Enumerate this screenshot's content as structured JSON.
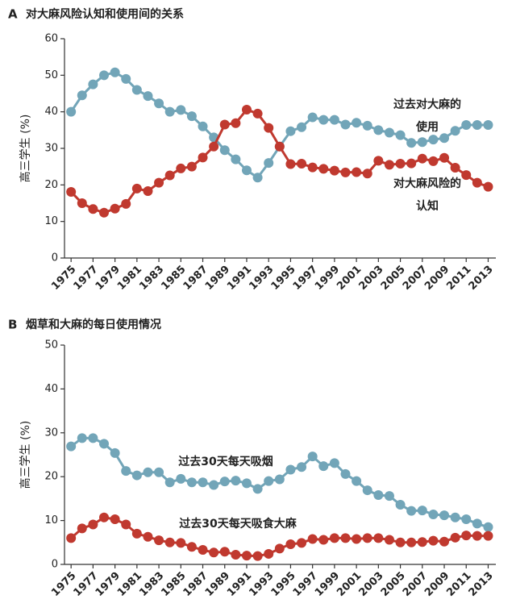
{
  "chart_data": [
    {
      "type": "line",
      "panel": "A",
      "title": "对大麻风险认知和使用间的关系",
      "ylabel": "高三学生 (%)",
      "x": [
        1975,
        1976,
        1977,
        1978,
        1979,
        1980,
        1981,
        1982,
        1983,
        1984,
        1985,
        1986,
        1987,
        1988,
        1989,
        1990,
        1991,
        1992,
        1993,
        1994,
        1995,
        1996,
        1997,
        1998,
        1999,
        2000,
        2001,
        2002,
        2003,
        2004,
        2005,
        2006,
        2007,
        2008,
        2009,
        2010,
        2011,
        2012,
        2013
      ],
      "xlim": [
        1974.4,
        2013.7
      ],
      "xticks": [
        1975,
        1977,
        1979,
        1981,
        1983,
        1985,
        1987,
        1989,
        1991,
        1993,
        1995,
        1997,
        1999,
        2001,
        2003,
        2005,
        2007,
        2009,
        2011,
        2013
      ],
      "ylim": [
        0,
        60
      ],
      "yticks": [
        0,
        10,
        20,
        30,
        40,
        50,
        60
      ],
      "series": [
        {
          "color": "#72a5b8",
          "values": [
            40,
            44.5,
            47.5,
            50,
            50.8,
            49,
            46,
            44.3,
            42.3,
            40,
            40.5,
            38.8,
            36,
            33,
            29.5,
            27,
            24,
            22,
            26,
            30.5,
            34.7,
            35.8,
            38.5,
            37.8,
            37.8,
            36.5,
            37,
            36.2,
            35,
            34.3,
            33.6,
            31.5,
            31.7,
            32.4,
            32.8,
            34.8,
            36.4,
            36.4,
            36.4
          ]
        },
        {
          "color": "#c0392f",
          "values": [
            18.1,
            15,
            13.4,
            12.4,
            13.5,
            14.8,
            19,
            18.3,
            20.6,
            22.6,
            24.5,
            25,
            27.5,
            30.5,
            36.5,
            36.9,
            40.6,
            39.5,
            35.6,
            30.5,
            25.7,
            25.8,
            24.8,
            24.4,
            23.9,
            23.4,
            23.5,
            23.1,
            26.6,
            25.5,
            25.8,
            25.9,
            27.2,
            26.5,
            27.4,
            24.7,
            22.7,
            20.6,
            19.5
          ]
        }
      ],
      "annotations": [
        "过去对大麻的",
        "使用",
        "对大麻风险的",
        "认知"
      ]
    },
    {
      "type": "line",
      "panel": "B",
      "title": "烟草和大麻的每日使用情况",
      "ylabel": "高三学生 (%)",
      "x": [
        1975,
        1976,
        1977,
        1978,
        1979,
        1980,
        1981,
        1982,
        1983,
        1984,
        1985,
        1986,
        1987,
        1988,
        1989,
        1990,
        1991,
        1992,
        1993,
        1994,
        1995,
        1996,
        1997,
        1998,
        1999,
        2000,
        2001,
        2002,
        2003,
        2004,
        2005,
        2006,
        2007,
        2008,
        2009,
        2010,
        2011,
        2012,
        2013
      ],
      "xlim": [
        1974.4,
        2013.7
      ],
      "xticks": [
        1975,
        1977,
        1979,
        1981,
        1983,
        1985,
        1987,
        1989,
        1991,
        1993,
        1995,
        1997,
        1999,
        2001,
        2003,
        2005,
        2007,
        2009,
        2011,
        2013
      ],
      "ylim": [
        0,
        50
      ],
      "yticks": [
        0,
        10,
        20,
        30,
        40,
        50
      ],
      "series": [
        {
          "color": "#72a5b8",
          "values": [
            26.9,
            28.8,
            28.8,
            27.5,
            25.4,
            21.3,
            20.3,
            21,
            21,
            18.7,
            19.5,
            18.7,
            18.7,
            18.1,
            18.9,
            19.1,
            18.5,
            17.2,
            19,
            19.4,
            21.6,
            22.2,
            24.6,
            22.4,
            23.1,
            20.6,
            19,
            16.9,
            15.8,
            15.6,
            13.6,
            12.2,
            12.3,
            11.4,
            11.2,
            10.7,
            10.3,
            9.3,
            8.5
          ]
        },
        {
          "color": "#c0392f",
          "values": [
            6,
            8.2,
            9.1,
            10.7,
            10.3,
            9.1,
            7,
            6.3,
            5.5,
            5,
            4.9,
            4,
            3.3,
            2.7,
            2.9,
            2.2,
            2,
            1.9,
            2.4,
            3.6,
            4.6,
            4.9,
            5.8,
            5.6,
            6,
            6,
            5.8,
            6,
            6,
            5.6,
            5,
            5,
            5.1,
            5.4,
            5.2,
            6.1,
            6.6,
            6.5,
            6.5
          ]
        }
      ],
      "annotations": [
        "过去30天每天吸烟",
        "过去30天每天吸食大麻"
      ]
    }
  ]
}
